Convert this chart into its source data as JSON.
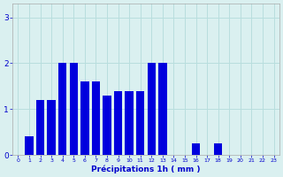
{
  "hours": [
    0,
    1,
    2,
    3,
    4,
    5,
    6,
    7,
    8,
    9,
    10,
    11,
    12,
    13,
    14,
    15,
    16,
    17,
    18,
    19,
    20,
    21,
    22,
    23
  ],
  "values": [
    0.0,
    0.4,
    1.2,
    1.2,
    2.0,
    2.0,
    1.6,
    1.6,
    1.3,
    1.4,
    1.4,
    1.4,
    2.0,
    2.0,
    0.0,
    0.0,
    0.25,
    0.0,
    0.25,
    0.0,
    0.0,
    0.0,
    0.0,
    0.0
  ],
  "bar_color": "#0000dd",
  "background_color": "#daf0f0",
  "grid_color_v": "#b8dede",
  "grid_color_h": "#b8dede",
  "xlabel": "Précipitations 1h ( mm )",
  "xlabel_color": "#0000cc",
  "tick_color": "#0000cc",
  "ylim": [
    0,
    3.3
  ],
  "yticks": [
    0,
    1,
    2,
    3
  ],
  "bar_width": 0.75
}
